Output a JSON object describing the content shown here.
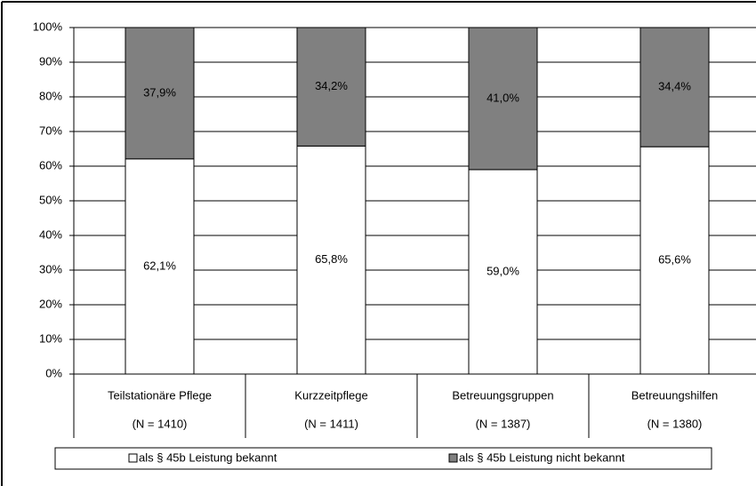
{
  "chart_data": {
    "type": "stacked_bar",
    "categories": [
      [
        "Teilstationäre Pflege",
        "(N = 1410)"
      ],
      [
        "Kurzzeitpflege",
        "(N = 1411)"
      ],
      [
        "Betreuungsgruppen",
        "(N = 1387)"
      ],
      [
        "Betreuungshilfen",
        "(N = 1380)"
      ]
    ],
    "series": [
      {
        "name": "als § 45b Leistung bekannt",
        "color": "#ffffff",
        "values": [
          62.1,
          65.8,
          59.0,
          65.6
        ],
        "value_labels": [
          "62,1%",
          "65,8%",
          "59,0%",
          "65,6%"
        ]
      },
      {
        "name": "als § 45b Leistung nicht bekannt",
        "color": "#808080",
        "values": [
          37.9,
          34.2,
          41.0,
          34.4
        ],
        "value_labels": [
          "37,9%",
          "34,2%",
          "41,0%",
          "34,4%"
        ]
      }
    ],
    "ylim": [
      0,
      100
    ],
    "yticks": [
      {
        "value": 0,
        "label": "0%"
      },
      {
        "value": 10,
        "label": "10%"
      },
      {
        "value": 20,
        "label": "20%"
      },
      {
        "value": 30,
        "label": "30%"
      },
      {
        "value": 40,
        "label": "40%"
      },
      {
        "value": 50,
        "label": "50%"
      },
      {
        "value": 60,
        "label": "60%"
      },
      {
        "value": 70,
        "label": "70%"
      },
      {
        "value": 80,
        "label": "80%"
      },
      {
        "value": 90,
        "label": "90%"
      },
      {
        "value": 100,
        "label": "100%"
      }
    ],
    "grid": true
  }
}
